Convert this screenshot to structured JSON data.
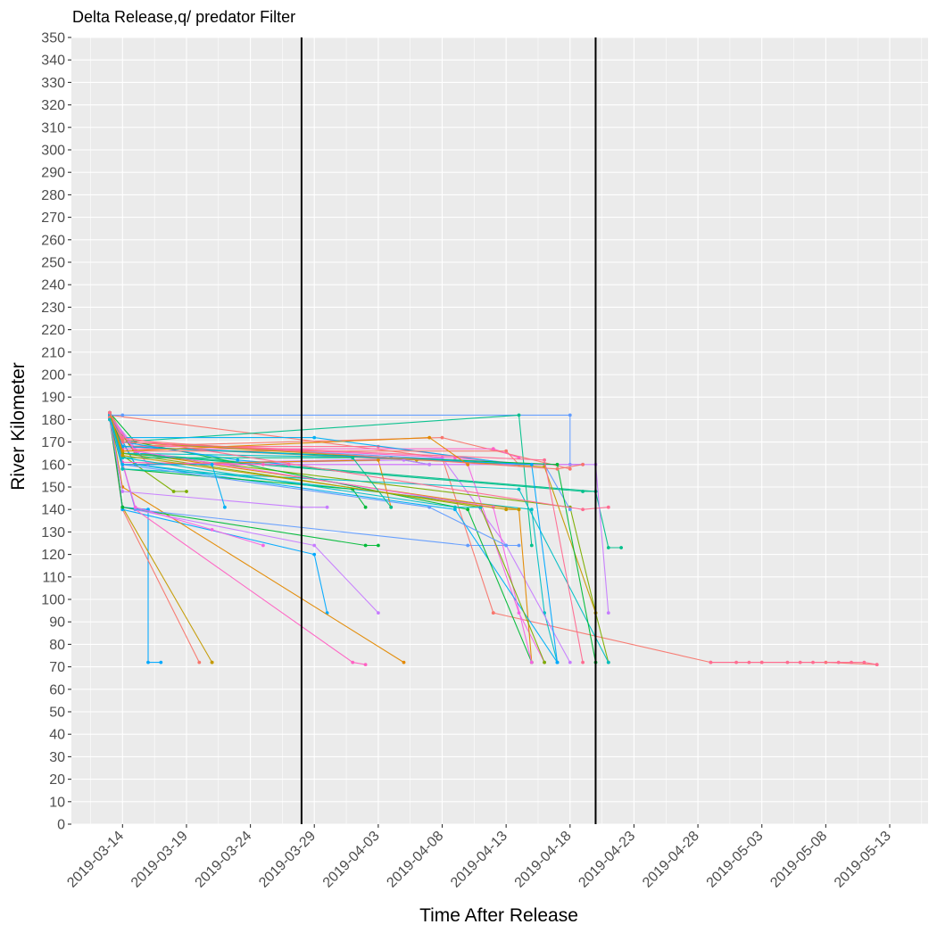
{
  "chart_data": {
    "type": "line",
    "title": "Delta Release,q/ predator Filter",
    "xlabel": "Time After Release",
    "ylabel": "River Kilometer",
    "x_axis_type": "date",
    "xlim": [
      "2019-03-10",
      "2019-05-16"
    ],
    "ylim": [
      0,
      350
    ],
    "y_ticks": [
      0,
      10,
      20,
      30,
      40,
      50,
      60,
      70,
      80,
      90,
      100,
      110,
      120,
      130,
      140,
      150,
      160,
      170,
      180,
      190,
      200,
      210,
      220,
      230,
      240,
      250,
      260,
      270,
      280,
      290,
      300,
      310,
      320,
      330,
      340,
      350
    ],
    "x_ticks": [
      "2019-03-14",
      "2019-03-19",
      "2019-03-24",
      "2019-03-29",
      "2019-04-03",
      "2019-04-08",
      "2019-04-13",
      "2019-04-18",
      "2019-04-23",
      "2019-04-28",
      "2019-05-03",
      "2019-05-08",
      "2019-05-13"
    ],
    "grid": true,
    "legend": "none",
    "vlines": [
      "2019-03-28",
      "2019-04-20"
    ],
    "colors": {
      "panel_bg": "#ebebeb",
      "grid": "#ffffff",
      "vline": "#000000",
      "palette": [
        "#F8766D",
        "#E38900",
        "#C49A00",
        "#99A800",
        "#53B400",
        "#00BC56",
        "#00C094",
        "#00BFC4",
        "#00B6EB",
        "#06A4FF",
        "#A58AFF",
        "#DF70F8",
        "#FB61D7",
        "#FF66A8"
      ]
    },
    "series": [
      {
        "color": "#00A9FF",
        "x": [
          "2019-03-13",
          "2019-03-14",
          "2019-03-16",
          "2019-03-16",
          "2019-03-17"
        ],
        "y": [
          183,
          141,
          140,
          72,
          72
        ]
      },
      {
        "color": "#C49A00",
        "x": [
          "2019-03-13",
          "2019-03-14",
          "2019-03-21",
          "2019-03-21"
        ],
        "y": [
          183,
          141,
          72,
          72
        ]
      },
      {
        "color": "#F8766D",
        "x": [
          "2019-03-13",
          "2019-03-14",
          "2019-03-20"
        ],
        "y": [
          180,
          140,
          72
        ]
      },
      {
        "color": "#00A9FF",
        "x": [
          "2019-03-13",
          "2019-03-14",
          "2019-03-29",
          "2019-03-30"
        ],
        "y": [
          183,
          140,
          120,
          94
        ]
      },
      {
        "color": "#E38900",
        "x": [
          "2019-03-13",
          "2019-03-14",
          "2019-04-05"
        ],
        "y": [
          182,
          150,
          72
        ]
      },
      {
        "color": "#FF61C3",
        "x": [
          "2019-03-13",
          "2019-03-15",
          "2019-04-01",
          "2019-04-02"
        ],
        "y": [
          182,
          140,
          72,
          71
        ]
      },
      {
        "color": "#C77CFF",
        "x": [
          "2019-03-13",
          "2019-03-14",
          "2019-03-29",
          "2019-04-03"
        ],
        "y": [
          181,
          141,
          124,
          94
        ]
      },
      {
        "color": "#00BA38",
        "x": [
          "2019-03-13",
          "2019-03-14",
          "2019-04-02",
          "2019-04-03"
        ],
        "y": [
          180,
          141,
          124,
          124
        ]
      },
      {
        "color": "#619CFF",
        "x": [
          "2019-03-13",
          "2019-03-15",
          "2019-04-10",
          "2019-04-14"
        ],
        "y": [
          181,
          140,
          124,
          124
        ]
      },
      {
        "color": "#F8766D",
        "x": [
          "2019-03-13",
          "2019-04-08",
          "2019-04-12",
          "2019-04-12",
          "2019-04-29",
          "2019-05-03",
          "2019-05-08",
          "2019-05-12"
        ],
        "y": [
          182,
          163,
          94,
          94,
          72,
          72,
          72,
          71
        ]
      },
      {
        "color": "#FF6C91",
        "x": [
          "2019-04-29",
          "2019-05-01",
          "2019-05-02",
          "2019-05-03",
          "2019-05-05",
          "2019-05-06",
          "2019-05-07",
          "2019-05-09",
          "2019-05-10",
          "2019-05-11",
          "2019-05-12"
        ],
        "y": [
          72,
          72,
          72,
          72,
          72,
          72,
          72,
          72,
          72,
          72,
          71
        ]
      },
      {
        "color": "#00BFC4",
        "x": [
          "2019-03-13",
          "2019-03-15",
          "2019-04-15",
          "2019-04-16",
          "2019-04-17"
        ],
        "y": [
          180,
          160,
          140,
          94,
          72
        ]
      },
      {
        "color": "#00C08B",
        "x": [
          "2019-03-13",
          "2019-03-15",
          "2019-04-20",
          "2019-04-21",
          "2019-04-22"
        ],
        "y": [
          181,
          165,
          148,
          123,
          123
        ]
      },
      {
        "color": "#C77CFF",
        "x": [
          "2019-03-13",
          "2019-03-15",
          "2019-04-08",
          "2019-04-13",
          "2019-04-18"
        ],
        "y": [
          180,
          160,
          163,
          124,
          72
        ]
      },
      {
        "color": "#7CAE00",
        "x": [
          "2019-03-13",
          "2019-03-15",
          "2019-04-18",
          "2019-04-20",
          "2019-04-21"
        ],
        "y": [
          181,
          165,
          141,
          94,
          72
        ]
      },
      {
        "color": "#F564E3",
        "x": [
          "2019-03-13",
          "2019-03-16",
          "2019-04-10",
          "2019-04-14",
          "2019-04-16"
        ],
        "y": [
          180,
          160,
          160,
          94,
          72
        ]
      },
      {
        "color": "#E38900",
        "x": [
          "2019-03-13",
          "2019-03-15",
          "2019-04-14",
          "2019-04-15"
        ],
        "y": [
          183,
          165,
          140,
          72
        ]
      },
      {
        "color": "#00B0F6",
        "x": [
          "2019-03-13",
          "2019-03-15",
          "2019-04-09",
          "2019-04-17"
        ],
        "y": [
          181,
          160,
          140,
          72
        ]
      },
      {
        "color": "#00BA38",
        "x": [
          "2019-03-13",
          "2019-03-15",
          "2019-04-10",
          "2019-04-15"
        ],
        "y": [
          183,
          170,
          140,
          72
        ]
      },
      {
        "color": "#619CFF",
        "x": [
          "2019-03-13",
          "2019-03-14",
          "2019-04-18",
          "2019-04-18",
          "2019-04-19"
        ],
        "y": [
          182,
          182,
          182,
          160,
          160
        ]
      },
      {
        "color": "#FF61C3",
        "x": [
          "2019-03-13",
          "2019-03-14",
          "2019-04-09",
          "2019-04-15",
          "2019-04-19"
        ],
        "y": [
          182,
          170,
          163,
          160,
          160
        ]
      },
      {
        "color": "#00C08B",
        "x": [
          "2019-03-13",
          "2019-03-14",
          "2019-04-14",
          "2019-04-15"
        ],
        "y": [
          183,
          170,
          182,
          124
        ]
      },
      {
        "color": "#F8766D",
        "x": [
          "2019-03-13",
          "2019-03-14",
          "2019-04-08",
          "2019-04-18"
        ],
        "y": [
          182,
          168,
          172,
          158
        ]
      },
      {
        "color": "#00BFC4",
        "x": [
          "2019-03-13",
          "2019-03-14",
          "2019-04-04",
          "2019-04-07"
        ],
        "y": [
          181,
          165,
          163,
          160
        ]
      },
      {
        "color": "#C49A00",
        "x": [
          "2019-03-13",
          "2019-03-14",
          "2019-04-06",
          "2019-04-14"
        ],
        "y": [
          183,
          168,
          162,
          160
        ]
      },
      {
        "color": "#C77CFF",
        "x": [
          "2019-03-13",
          "2019-03-16",
          "2019-04-05",
          "2019-04-07"
        ],
        "y": [
          182,
          160,
          162,
          160
        ]
      },
      {
        "color": "#FF6C91",
        "x": [
          "2019-03-13",
          "2019-03-14",
          "2019-04-03",
          "2019-04-14"
        ],
        "y": [
          183,
          168,
          168,
          160
        ]
      },
      {
        "color": "#00A9FF",
        "x": [
          "2019-03-13",
          "2019-03-14",
          "2019-03-23",
          "2019-03-27"
        ],
        "y": [
          182,
          170,
          162,
          160
        ]
      },
      {
        "color": "#7CAE00",
        "x": [
          "2019-03-13",
          "2019-03-14",
          "2019-03-18",
          "2019-03-19"
        ],
        "y": [
          180,
          164,
          148,
          148
        ]
      },
      {
        "color": "#F564E3",
        "x": [
          "2019-03-13",
          "2019-03-15",
          "2019-03-21",
          "2019-03-25"
        ],
        "y": [
          180,
          141,
          131,
          124
        ]
      },
      {
        "color": "#00BA38",
        "x": [
          "2019-03-13",
          "2019-03-14",
          "2019-04-01",
          "2019-04-02"
        ],
        "y": [
          180,
          158,
          149,
          141
        ]
      },
      {
        "color": "#E38900",
        "x": [
          "2019-03-13",
          "2019-03-14",
          "2019-04-03",
          "2019-04-04"
        ],
        "y": [
          182,
          160,
          162,
          141
        ]
      },
      {
        "color": "#619CFF",
        "x": [
          "2019-03-13",
          "2019-03-14",
          "2019-04-16",
          "2019-04-18"
        ],
        "y": [
          181,
          170,
          160,
          140
        ]
      },
      {
        "color": "#00C08B",
        "x": [
          "2019-03-13",
          "2019-03-14",
          "2019-04-19",
          "2019-04-20"
        ],
        "y": [
          180,
          165,
          148,
          148
        ]
      },
      {
        "color": "#FF61C3",
        "x": [
          "2019-03-13",
          "2019-03-14",
          "2019-04-12",
          "2019-04-14"
        ],
        "y": [
          183,
          167,
          167,
          163
        ]
      },
      {
        "color": "#00B0F6",
        "x": [
          "2019-03-13",
          "2019-03-14",
          "2019-03-29",
          "2019-04-14"
        ],
        "y": [
          182,
          172,
          172,
          160
        ]
      },
      {
        "color": "#F8766D",
        "x": [
          "2019-03-13",
          "2019-03-14",
          "2019-04-13",
          "2019-04-14"
        ],
        "y": [
          183,
          166,
          166,
          160
        ]
      },
      {
        "color": "#C49A00",
        "x": [
          "2019-03-13",
          "2019-03-14",
          "2019-04-16",
          "2019-04-20"
        ],
        "y": [
          180,
          170,
          159,
          94
        ]
      },
      {
        "color": "#00BFC4",
        "x": [
          "2019-03-13",
          "2019-03-14",
          "2019-04-14",
          "2019-04-21"
        ],
        "y": [
          181,
          158,
          149,
          72
        ]
      },
      {
        "color": "#C77CFF",
        "x": [
          "2019-03-13",
          "2019-03-14",
          "2019-04-20",
          "2019-04-21"
        ],
        "y": [
          181,
          160,
          160,
          94
        ]
      },
      {
        "color": "#00BA38",
        "x": [
          "2019-03-13",
          "2019-03-14",
          "2019-04-17",
          "2019-04-20"
        ],
        "y": [
          182,
          168,
          160,
          72
        ]
      },
      {
        "color": "#FF6C91",
        "x": [
          "2019-03-13",
          "2019-03-14",
          "2019-04-16",
          "2019-04-19"
        ],
        "y": [
          182,
          170,
          162,
          72
        ]
      },
      {
        "color": "#00A9FF",
        "x": [
          "2019-03-13",
          "2019-03-14",
          "2019-04-15",
          "2019-04-17"
        ],
        "y": [
          180,
          168,
          160,
          72
        ]
      },
      {
        "color": "#F564E3",
        "x": [
          "2019-03-13",
          "2019-03-15",
          "2019-04-12",
          "2019-04-15"
        ],
        "y": [
          182,
          166,
          141,
          72
        ]
      },
      {
        "color": "#7CAE00",
        "x": [
          "2019-03-13",
          "2019-03-14",
          "2019-04-11",
          "2019-04-16"
        ],
        "y": [
          183,
          165,
          141,
          72
        ]
      },
      {
        "color": "#619CFF",
        "x": [
          "2019-03-13",
          "2019-03-14",
          "2019-04-07",
          "2019-04-13"
        ],
        "y": [
          182,
          160,
          141,
          124
        ]
      },
      {
        "color": "#E38900",
        "x": [
          "2019-03-13",
          "2019-03-14",
          "2019-04-07",
          "2019-04-10"
        ],
        "y": [
          182,
          166,
          172,
          160
        ]
      },
      {
        "color": "#00C08B",
        "x": [
          "2019-03-13",
          "2019-03-14",
          "2019-04-01",
          "2019-04-04"
        ],
        "y": [
          182,
          163,
          163,
          141
        ]
      },
      {
        "color": "#C77CFF",
        "x": [
          "2019-03-13",
          "2019-03-14",
          "2019-03-28",
          "2019-03-30"
        ],
        "y": [
          180,
          148,
          141,
          141
        ]
      },
      {
        "color": "#FF61C3",
        "x": [
          "2019-03-13",
          "2019-03-14",
          "2019-03-25",
          "2019-03-27"
        ],
        "y": [
          181,
          161,
          160,
          160
        ]
      },
      {
        "color": "#00B0F6",
        "x": [
          "2019-03-13",
          "2019-03-14",
          "2019-03-21",
          "2019-03-22"
        ],
        "y": [
          182,
          160,
          160,
          141
        ]
      },
      {
        "color": "#F8766D",
        "x": [
          "2019-03-13",
          "2019-03-14",
          "2019-04-17",
          "2019-04-19"
        ],
        "y": [
          181,
          171,
          158,
          160
        ]
      },
      {
        "color": "#00BFC4",
        "x": [
          "2019-03-13",
          "2019-03-14",
          "2019-04-09",
          "2019-04-11"
        ],
        "y": [
          180,
          163,
          141,
          141
        ]
      },
      {
        "color": "#C49A00",
        "x": [
          "2019-03-13",
          "2019-03-14",
          "2019-04-13",
          "2019-04-14"
        ],
        "y": [
          183,
          164,
          140,
          140
        ]
      },
      {
        "color": "#FF6C91",
        "x": [
          "2019-03-13",
          "2019-03-14",
          "2019-04-19",
          "2019-04-21"
        ],
        "y": [
          183,
          172,
          140,
          141
        ]
      }
    ]
  }
}
